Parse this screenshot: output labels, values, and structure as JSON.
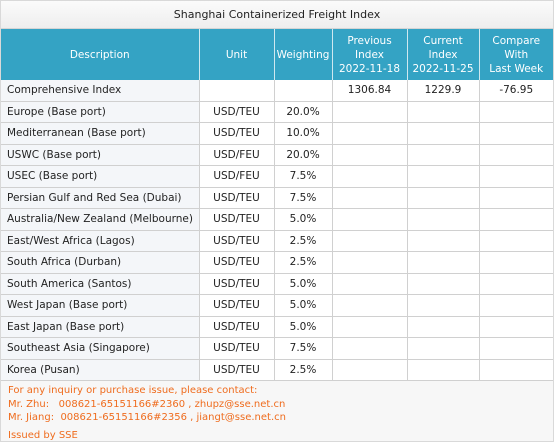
{
  "title": "Shanghai Containerized Freight Index",
  "headers": {
    "description": "Description",
    "unit": "Unit",
    "weighting": "Weighting",
    "previous": "Previous Index\n2022-11-18",
    "current": "Current Index\n2022-11-25",
    "compare": "Compare With\nLast Week"
  },
  "rows": [
    {
      "description": "Comprehensive Index",
      "unit": "",
      "weighting": "",
      "previous": "1306.84",
      "current": "1229.9",
      "compare": "-76.95"
    },
    {
      "description": "Europe (Base port)",
      "unit": "USD/TEU",
      "weighting": "20.0%",
      "previous": "",
      "current": "",
      "compare": ""
    },
    {
      "description": "Mediterranean (Base port)",
      "unit": "USD/TEU",
      "weighting": "10.0%",
      "previous": "",
      "current": "",
      "compare": ""
    },
    {
      "description": "USWC (Base port)",
      "unit": "USD/FEU",
      "weighting": "20.0%",
      "previous": "",
      "current": "",
      "compare": ""
    },
    {
      "description": "USEC (Base port)",
      "unit": "USD/FEU",
      "weighting": "7.5%",
      "previous": "",
      "current": "",
      "compare": ""
    },
    {
      "description": "Persian Gulf and Red Sea (Dubai)",
      "unit": "USD/TEU",
      "weighting": "7.5%",
      "previous": "",
      "current": "",
      "compare": ""
    },
    {
      "description": "Australia/New Zealand (Melbourne)",
      "unit": "USD/TEU",
      "weighting": "5.0%",
      "previous": "",
      "current": "",
      "compare": ""
    },
    {
      "description": "East/West Africa (Lagos)",
      "unit": "USD/TEU",
      "weighting": "2.5%",
      "previous": "",
      "current": "",
      "compare": ""
    },
    {
      "description": "South Africa (Durban)",
      "unit": "USD/TEU",
      "weighting": "2.5%",
      "previous": "",
      "current": "",
      "compare": ""
    },
    {
      "description": "South America (Santos)",
      "unit": "USD/TEU",
      "weighting": "5.0%",
      "previous": "",
      "current": "",
      "compare": ""
    },
    {
      "description": "West Japan (Base port)",
      "unit": "USD/TEU",
      "weighting": "5.0%",
      "previous": "",
      "current": "",
      "compare": ""
    },
    {
      "description": "East Japan (Base port)",
      "unit": "USD/TEU",
      "weighting": "5.0%",
      "previous": "",
      "current": "",
      "compare": ""
    },
    {
      "description": "Southeast Asia (Singapore)",
      "unit": "USD/TEU",
      "weighting": "7.5%",
      "previous": "",
      "current": "",
      "compare": ""
    },
    {
      "description": "Korea (Pusan)",
      "unit": "USD/TEU",
      "weighting": "2.5%",
      "previous": "",
      "current": "",
      "compare": ""
    }
  ],
  "notes": {
    "inquiry": "For any inquiry or purchase issue, please contact:",
    "contact1": "Mr. Zhu:   008621-65151166#2360 , zhupz@sse.net.cn",
    "contact2": "Mr. Jiang:  008621-65151166#2356 , jiangt@sse.net.cn",
    "issued": "Issued by SSE"
  },
  "colors": {
    "header_bg": "#34a3c4",
    "note_text": "#ef6c1e"
  }
}
